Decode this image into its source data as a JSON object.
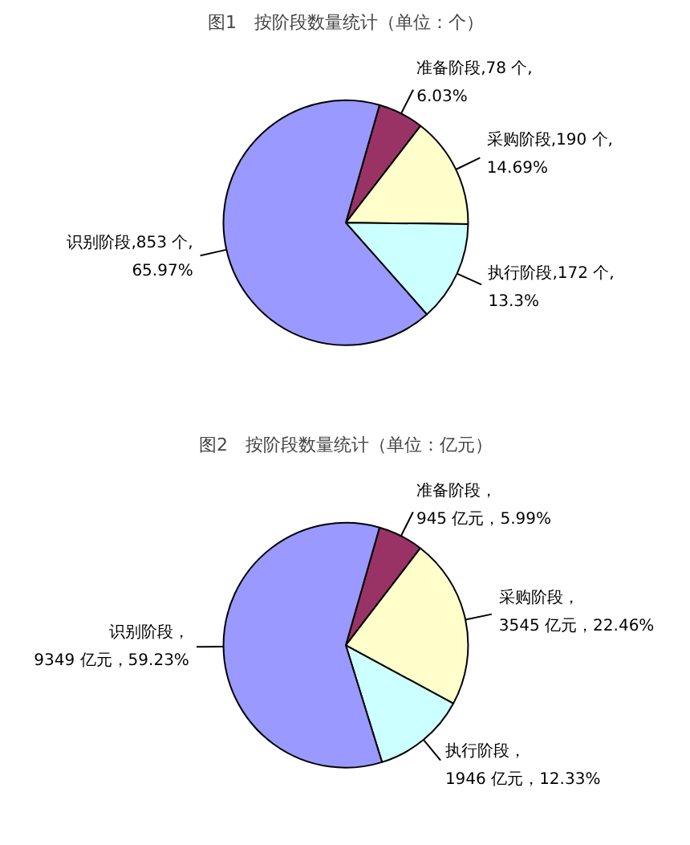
{
  "chart_data": [
    {
      "type": "pie",
      "title": "图1　按阶段数量统计（单位：个）",
      "categories": [
        "准备阶段",
        "采购阶段",
        "执行阶段",
        "识别阶段"
      ],
      "values": [
        78,
        190,
        172,
        853
      ],
      "colors": [
        "#993366",
        "#ffffcc",
        "#ccffff",
        "#9999ff"
      ],
      "value_labels": [
        ",78 个,\n6.03%",
        ",190 个,\n14.69%",
        ",172 个,\n13.3%",
        ",853 个,\n65.97%"
      ]
    },
    {
      "type": "pie",
      "title": "图2　按阶段数量统计（单位：亿元）",
      "categories": [
        "准备阶段",
        "采购阶段",
        "执行阶段",
        "识别阶段"
      ],
      "values": [
        945,
        3545,
        1946,
        9349
      ],
      "colors": [
        "#993366",
        "#ffffcc",
        "#ccffff",
        "#9999ff"
      ],
      "value_labels": [
        "，\n945 亿元，5.99%",
        "，\n3545 亿元，22.46%",
        "，\n1946 亿元，12.33%",
        "，\n9349 亿元，59.23%"
      ]
    }
  ]
}
